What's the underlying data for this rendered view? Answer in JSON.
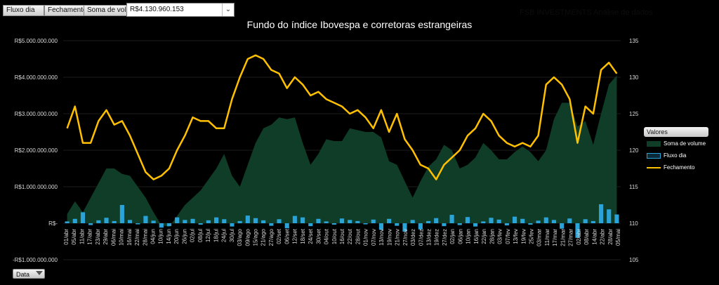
{
  "toolbar": {
    "buttons": [
      "Fluxo dia",
      "Fechamento",
      "Soma de volum"
    ],
    "dropdown_value": "R$4.130.960.153",
    "brand": "FSB INVESTMENTS  Análise de dados"
  },
  "legend": {
    "title": "Valores",
    "items": [
      "Soma de volume",
      "Fluxo dia",
      "Fechamento"
    ]
  },
  "filter_button": "Data",
  "colors": {
    "background": "#000000",
    "volume_area": "#0f3d27",
    "fluxo_bars": "#2aa3d8",
    "fechamento_line": "#ffc000",
    "gridline": "#3a3a3a",
    "axis_text": "#d9d9d9"
  },
  "chart_data": {
    "type": "line",
    "title": "Fundo do índice Ibovespa  e corretoras estrangeiras",
    "y_left": {
      "label": "",
      "range": [
        -1000000000,
        5000000000
      ],
      "ticks": [
        "R$5.000.000.000",
        "R$4.000.000.000",
        "R$3.000.000.000",
        "R$2.000.000.000",
        "R$1.000.000.000",
        "R$-",
        "-R$1.000.000.000"
      ],
      "tick_values": [
        5000000000,
        4000000000,
        3000000000,
        2000000000,
        1000000000,
        0,
        -1000000000
      ]
    },
    "y_right": {
      "label": "",
      "range": [
        105,
        135
      ],
      "ticks": [
        "135",
        "130",
        "125",
        "120",
        "115",
        "110",
        "105"
      ],
      "tick_values": [
        135,
        130,
        125,
        120,
        115,
        110,
        105
      ]
    },
    "x_tick_labels": [
      "01/abr",
      "05/abr",
      "11/abr",
      "17/abr",
      "23/abr",
      "29/abr",
      "06/mai",
      "10/mai",
      "16/mai",
      "22/mai",
      "28/mai",
      "04/jun",
      "10/jun",
      "14/jun",
      "20/jun",
      "26/jun",
      "02/jul",
      "08/jul",
      "12/jul",
      "18/jul",
      "24/jul",
      "30/jul",
      "03/ago",
      "09/ago",
      "15/ago",
      "21/ago",
      "27/ago",
      "02/set",
      "06/set",
      "12/set",
      "18/set",
      "24/set",
      "30/set",
      "04/out",
      "10/out",
      "16/out",
      "22/out",
      "28/out",
      "01/nov",
      "07/nov",
      "13/nov",
      "19/nov",
      "21/nov",
      "27/nov",
      "03/dez",
      "07/dez",
      "13/dez",
      "19/dez",
      "27/dez",
      "02/jan",
      "06/jan",
      "10/jan",
      "16/jan",
      "22/jan",
      "28/jan",
      "03/fev",
      "07/fev",
      "13/fev",
      "19/fev",
      "25/fev",
      "03/mar",
      "11/mar",
      "17/mar",
      "21/mar",
      "27/mar",
      "02/abr",
      "08/abr",
      "14/abr",
      "22/abr",
      "28/abr",
      "05/mai"
    ],
    "grid": true,
    "legend_position": "right",
    "series": [
      {
        "name": "Soma de volume",
        "type": "area",
        "axis": "left",
        "values": [
          250000000,
          600000000,
          300000000,
          700000000,
          1100000000,
          1500000000,
          1500000000,
          1350000000,
          1300000000,
          1000000000,
          700000000,
          300000000,
          -50000000,
          -100000000,
          200000000,
          500000000,
          700000000,
          900000000,
          1200000000,
          1500000000,
          1900000000,
          1300000000,
          1000000000,
          1600000000,
          2200000000,
          2600000000,
          2700000000,
          2900000000,
          2850000000,
          2900000000,
          2200000000,
          1600000000,
          1900000000,
          2300000000,
          2250000000,
          2250000000,
          2600000000,
          2550000000,
          2500000000,
          2500000000,
          2350000000,
          1700000000,
          1600000000,
          1150000000,
          700000000,
          1150000000,
          1550000000,
          1750000000,
          2150000000,
          2000000000,
          1500000000,
          1600000000,
          1800000000,
          2200000000,
          2000000000,
          1750000000,
          1750000000,
          1950000000,
          2100000000,
          1950000000,
          1700000000,
          2000000000,
          2850000000,
          3300000000,
          3300000000,
          2650000000,
          2800000000,
          2150000000,
          3000000000,
          3800000000,
          4050000000
        ]
      },
      {
        "name": "Fluxo dia",
        "type": "bar",
        "axis": "left",
        "values": [
          50000000,
          120000000,
          300000000,
          -50000000,
          80000000,
          150000000,
          60000000,
          500000000,
          90000000,
          -30000000,
          200000000,
          70000000,
          -120000000,
          -80000000,
          160000000,
          90000000,
          120000000,
          -40000000,
          80000000,
          160000000,
          110000000,
          -90000000,
          60000000,
          210000000,
          140000000,
          80000000,
          -70000000,
          110000000,
          -140000000,
          200000000,
          160000000,
          -80000000,
          120000000,
          50000000,
          -40000000,
          130000000,
          90000000,
          60000000,
          -30000000,
          100000000,
          -180000000,
          120000000,
          -70000000,
          -230000000,
          90000000,
          -170000000,
          60000000,
          140000000,
          -80000000,
          230000000,
          -50000000,
          170000000,
          -90000000,
          50000000,
          150000000,
          100000000,
          -60000000,
          180000000,
          120000000,
          -40000000,
          70000000,
          160000000,
          90000000,
          -150000000,
          130000000,
          -400000000,
          110000000,
          60000000,
          520000000,
          380000000,
          240000000
        ]
      },
      {
        "name": "Fechamento",
        "type": "line",
        "axis": "right",
        "values": [
          123,
          126,
          121,
          121,
          124,
          125.5,
          123.5,
          124,
          122,
          119.5,
          117,
          116,
          116.5,
          117.5,
          120,
          122,
          124.5,
          124,
          124,
          123,
          123,
          127,
          130,
          132.5,
          133,
          132.5,
          131,
          130.5,
          128.5,
          130,
          129,
          127.5,
          128,
          127,
          126.5,
          126,
          125,
          125.5,
          124.5,
          123,
          125.5,
          122.5,
          125,
          121.5,
          120,
          118,
          117.5,
          116,
          118,
          119,
          120,
          122,
          123,
          125,
          124,
          122,
          121,
          120.5,
          121,
          120.5,
          122,
          129,
          130,
          129,
          127,
          121,
          126,
          125,
          131,
          132,
          130.5
        ]
      }
    ]
  }
}
